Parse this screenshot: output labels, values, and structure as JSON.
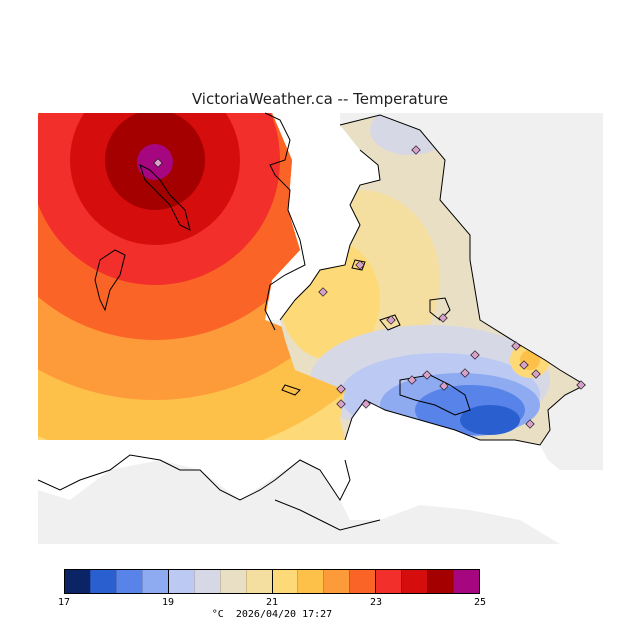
{
  "title": "VictoriaWeather.ca -- Temperature",
  "legend": {
    "colors": [
      "#0b2466",
      "#2a5fcf",
      "#5883e8",
      "#8eaaf0",
      "#bccaf3",
      "#d6d8e6",
      "#e8dfc5",
      "#f4dea0",
      "#fed978",
      "#fdc149",
      "#fd9a3a",
      "#fb6427",
      "#f22f2a",
      "#d60d0d",
      "#a50000",
      "#a6067f"
    ],
    "ticks": [
      "17",
      "19",
      "21",
      "23",
      "25"
    ],
    "unit": "°C",
    "timestamp": "2026/04/20 17:27"
  },
  "map": {
    "land_color": "#f0f0f0",
    "coast_color": "#000000",
    "station_marker_color": "#d6a0c8",
    "hot_center_color": "#a6067f"
  }
}
